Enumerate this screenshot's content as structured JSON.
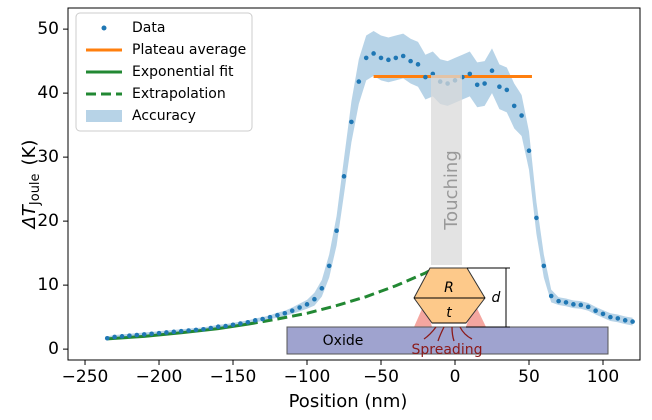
{
  "chart_data": {
    "type": "line",
    "x_label": "Position (nm)",
    "y_label": {
      "main": "ΔT",
      "sub": "Joule",
      "unit": "(K)"
    },
    "xlim": [
      -261.5,
      125
    ],
    "ylim": [
      -1.7,
      53.3
    ],
    "xticks": [
      {
        "value": -250,
        "label": "−250"
      },
      {
        "value": -200,
        "label": "−200"
      },
      {
        "value": -150,
        "label": "−150"
      },
      {
        "value": -100,
        "label": "−100"
      },
      {
        "value": -50,
        "label": "−50"
      },
      0,
      50,
      100
    ],
    "yticks": [
      0,
      10,
      20,
      30,
      40,
      50
    ],
    "legend": "upper left",
    "series": [
      {
        "name": "Data",
        "style": "dots",
        "color": "#1f77b4",
        "x": [
          -235,
          -230,
          -225,
          -220,
          -215,
          -210,
          -205,
          -200,
          -195,
          -190,
          -185,
          -180,
          -175,
          -170,
          -165,
          -160,
          -155,
          -150,
          -145,
          -140,
          -135,
          -130,
          -125,
          -120,
          -115,
          -110,
          -105,
          -100,
          -95,
          -90,
          -85,
          -80,
          -75,
          -70,
          -65,
          -60,
          -55,
          -50,
          -45,
          -40,
          -35,
          -30,
          -25,
          -20,
          -15,
          -10,
          -5,
          0,
          5,
          10,
          15,
          20,
          25,
          30,
          35,
          40,
          45,
          50,
          55,
          60,
          65,
          70,
          75,
          80,
          85,
          90,
          95,
          100,
          105,
          110,
          115,
          120
        ],
        "values": [
          1.7,
          1.9,
          2.0,
          2.1,
          2.2,
          2.3,
          2.4,
          2.5,
          2.6,
          2.7,
          2.8,
          2.9,
          3.0,
          3.1,
          3.3,
          3.5,
          3.6,
          3.8,
          4.0,
          4.2,
          4.5,
          4.7,
          5.0,
          5.3,
          5.6,
          6.0,
          6.5,
          7.0,
          7.8,
          9.5,
          13,
          18.5,
          27,
          35.5,
          41.8,
          45.5,
          46.2,
          45.5,
          45.2,
          45.5,
          45.8,
          45,
          44.5,
          42.5,
          43,
          41.8,
          41.5,
          42,
          42.5,
          43,
          41.3,
          41.5,
          43.5,
          41,
          40.5,
          38,
          36.5,
          31,
          20.5,
          13,
          8.3,
          7.5,
          7.3,
          7.0,
          6.9,
          6.6,
          6.0,
          5.5,
          5.0,
          4.8,
          4.5,
          4.3
        ]
      },
      {
        "name": "Plateau average",
        "style": "line",
        "color": "#ff7f0e",
        "x": [
          -55,
          52
        ],
        "values": [
          42.6,
          42.6
        ]
      },
      {
        "name": "Exponential fit",
        "style": "line",
        "color": "#228833",
        "x": [
          -235,
          -210,
          -185,
          -160,
          -140
        ],
        "values": [
          1.6,
          2.0,
          2.55,
          3.2,
          3.9
        ]
      },
      {
        "name": "Extrapolation",
        "style": "dashed",
        "color": "#228833",
        "x": [
          -140,
          -120,
          -100,
          -80,
          -60,
          -40,
          -20,
          -15
        ],
        "values": [
          3.9,
          4.7,
          5.6,
          6.8,
          8.2,
          9.9,
          11.9,
          12.5
        ]
      },
      {
        "name": "Accuracy",
        "style": "band",
        "color": "#1f77b4",
        "values": [
          0.3,
          0.3,
          0.3,
          0.3,
          0.3,
          0.3,
          0.3,
          0.3,
          0.3,
          0.3,
          0.3,
          0.3,
          0.3,
          0.3,
          0.3,
          0.3,
          0.3,
          0.3,
          0.3,
          0.3,
          0.3,
          0.3,
          0.3,
          0.4,
          0.4,
          0.5,
          0.6,
          0.7,
          1,
          1.3,
          1.8,
          2.3,
          2.8,
          3.2,
          3.5,
          3.5,
          3.5,
          3.5,
          3.5,
          3.5,
          3.5,
          3.5,
          3.5,
          3.5,
          3.5,
          3.5,
          3.5,
          3.5,
          3.5,
          3.5,
          3.5,
          3.5,
          3.5,
          3.5,
          3.5,
          3.5,
          3.2,
          3,
          2.5,
          1.8,
          1,
          0.6,
          0.6,
          0.6,
          0.6,
          0.6,
          0.6,
          0.6,
          0.6,
          0.6,
          0.6,
          0.6
        ]
      }
    ]
  },
  "annotations": {
    "touching": "Touching",
    "oxide": "Oxide",
    "spreading": "Spreading",
    "r": "R",
    "t": "t",
    "d": "d"
  }
}
